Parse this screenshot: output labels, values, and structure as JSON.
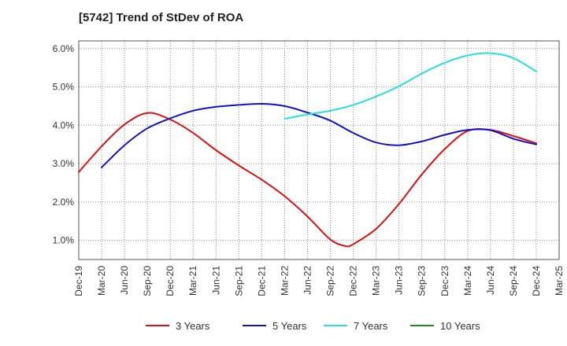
{
  "chart_data": {
    "type": "line",
    "title": "[5742]  Trend of StDev of ROA",
    "xlabel": "",
    "ylabel": "",
    "x_ticks": [
      "Dec-19",
      "Mar-20",
      "Jun-20",
      "Sep-20",
      "Dec-20",
      "Mar-21",
      "Jun-21",
      "Sep-21",
      "Dec-21",
      "Mar-22",
      "Jun-22",
      "Sep-22",
      "Dec-22",
      "Mar-23",
      "Jun-23",
      "Sep-23",
      "Dec-23",
      "Mar-24",
      "Jun-24",
      "Sep-24",
      "Dec-24",
      "Mar-25"
    ],
    "y_ticks": [
      "1.0%",
      "2.0%",
      "3.0%",
      "4.0%",
      "5.0%",
      "6.0%"
    ],
    "y_tick_values": [
      1,
      2,
      3,
      4,
      5,
      6
    ],
    "ylim": [
      0.5,
      6.2
    ],
    "grid": true,
    "legend_position": "bottom",
    "series": [
      {
        "name": "3 Years",
        "color": "#dd1111",
        "points": [
          [
            "Dec-19",
            2.78
          ],
          [
            "Mar-20",
            3.45
          ],
          [
            "Jun-20",
            4.02
          ],
          [
            "Sep-20",
            4.32
          ],
          [
            "Dec-20",
            4.15
          ],
          [
            "Mar-21",
            3.8
          ],
          [
            "Jun-21",
            3.35
          ],
          [
            "Sep-21",
            2.95
          ],
          [
            "Dec-21",
            2.58
          ],
          [
            "Mar-22",
            2.15
          ],
          [
            "Jun-22",
            1.62
          ],
          [
            "Sep-22",
            1.02
          ],
          [
            "Nov-22",
            0.85
          ],
          [
            "Dec-22",
            0.9
          ],
          [
            "Mar-23",
            1.3
          ],
          [
            "Jun-23",
            1.95
          ],
          [
            "Sep-23",
            2.72
          ],
          [
            "Dec-23",
            3.38
          ],
          [
            "Mar-24",
            3.85
          ],
          [
            "Jun-24",
            3.88
          ],
          [
            "Sep-24",
            3.72
          ],
          [
            "Dec-24",
            3.53
          ]
        ]
      },
      {
        "name": "5 Years",
        "color": "#1111cc",
        "points": [
          [
            "Mar-20",
            2.9
          ],
          [
            "Jun-20",
            3.48
          ],
          [
            "Sep-20",
            3.92
          ],
          [
            "Dec-20",
            4.18
          ],
          [
            "Mar-21",
            4.38
          ],
          [
            "Jun-21",
            4.48
          ],
          [
            "Sep-21",
            4.53
          ],
          [
            "Dec-21",
            4.56
          ],
          [
            "Mar-22",
            4.5
          ],
          [
            "Jun-22",
            4.33
          ],
          [
            "Sep-22",
            4.12
          ],
          [
            "Dec-22",
            3.8
          ],
          [
            "Mar-23",
            3.55
          ],
          [
            "Jun-23",
            3.48
          ],
          [
            "Sep-23",
            3.58
          ],
          [
            "Dec-23",
            3.75
          ],
          [
            "Mar-24",
            3.88
          ],
          [
            "Jun-24",
            3.87
          ],
          [
            "Sep-24",
            3.65
          ],
          [
            "Dec-24",
            3.5
          ]
        ]
      },
      {
        "name": "7 Years",
        "color": "#22e0e0",
        "points": [
          [
            "Mar-22",
            4.17
          ],
          [
            "Jun-22",
            4.28
          ],
          [
            "Sep-22",
            4.38
          ],
          [
            "Dec-22",
            4.53
          ],
          [
            "Mar-23",
            4.75
          ],
          [
            "Jun-23",
            5.02
          ],
          [
            "Sep-23",
            5.35
          ],
          [
            "Dec-23",
            5.63
          ],
          [
            "Mar-24",
            5.82
          ],
          [
            "Jun-24",
            5.88
          ],
          [
            "Sep-24",
            5.75
          ],
          [
            "Dec-24",
            5.4
          ]
        ]
      },
      {
        "name": "10 Years",
        "color": "#228822",
        "points": []
      }
    ]
  }
}
